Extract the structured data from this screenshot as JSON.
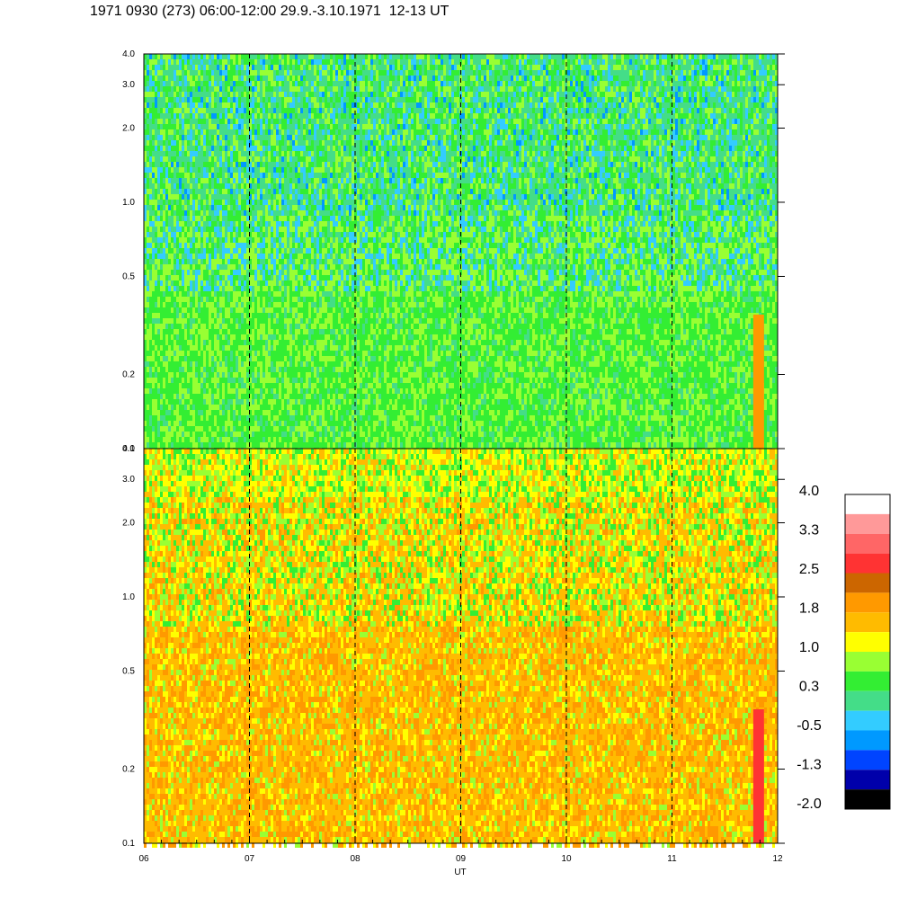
{
  "title": "1971 0930 (273) 06:00-12:00 29.9.-3.10.1971  12-13 UT",
  "chart_data": [
    {
      "type": "heatmap",
      "panel": "upper",
      "title": "",
      "xlabel": "",
      "ylabel": "",
      "x_ticks": [
        "06",
        "07",
        "08",
        "09",
        "10",
        "11",
        "12"
      ],
      "x_range": [
        6,
        12
      ],
      "y_scale": "log",
      "y_range": [
        0.1,
        4.0
      ],
      "y_ticks": [
        0.1,
        0.2,
        0.5,
        1.0,
        2.0,
        3.0,
        4.0
      ],
      "y_tick_labels": [
        "0.1",
        "0.2",
        "0.5",
        "1.0",
        "2.0",
        "3.0",
        "4.0"
      ],
      "hour_markers": [
        7,
        8,
        9,
        10,
        11
      ],
      "dominant_levels": [
        "0.3",
        "-0.5",
        "1.0"
      ]
    },
    {
      "type": "heatmap",
      "panel": "lower",
      "title": "",
      "xlabel": "UT",
      "ylabel": "",
      "x_ticks": [
        "06",
        "07",
        "08",
        "09",
        "10",
        "11",
        "12"
      ],
      "x_range": [
        6,
        12
      ],
      "y_scale": "log",
      "y_range": [
        0.1,
        4.0
      ],
      "y_ticks": [
        0.1,
        0.2,
        0.5,
        1.0,
        2.0,
        3.0,
        4.0
      ],
      "y_tick_labels": [
        "0.1",
        "0.2",
        "0.5",
        "1.0",
        "2.0",
        "3.0",
        "4.0"
      ],
      "hour_markers": [
        7,
        8,
        9,
        10,
        11
      ],
      "dominant_levels": [
        "1.8",
        "1.0",
        "0.3"
      ]
    }
  ],
  "colorbar": {
    "labels": [
      "4.0",
      "3.3",
      "2.5",
      "1.8",
      "1.0",
      "0.3",
      "-0.5",
      "-1.3",
      "-2.0"
    ],
    "colors": [
      "#ffffff",
      "#ff9999",
      "#ff6666",
      "#ff3333",
      "#cc6600",
      "#ff9900",
      "#ffbb00",
      "#ffff00",
      "#99ff33",
      "#33ee33",
      "#44dd88",
      "#33ccff",
      "#0099ff",
      "#0044ff",
      "#0000aa",
      "#000000"
    ]
  },
  "palette": {
    "upper": [
      "#33ee33",
      "#99ff33",
      "#44dd88",
      "#33ccff",
      "#0099ff"
    ],
    "lower": [
      "#ffbb00",
      "#ff9900",
      "#ffff00",
      "#99ff33",
      "#33ee33"
    ]
  }
}
